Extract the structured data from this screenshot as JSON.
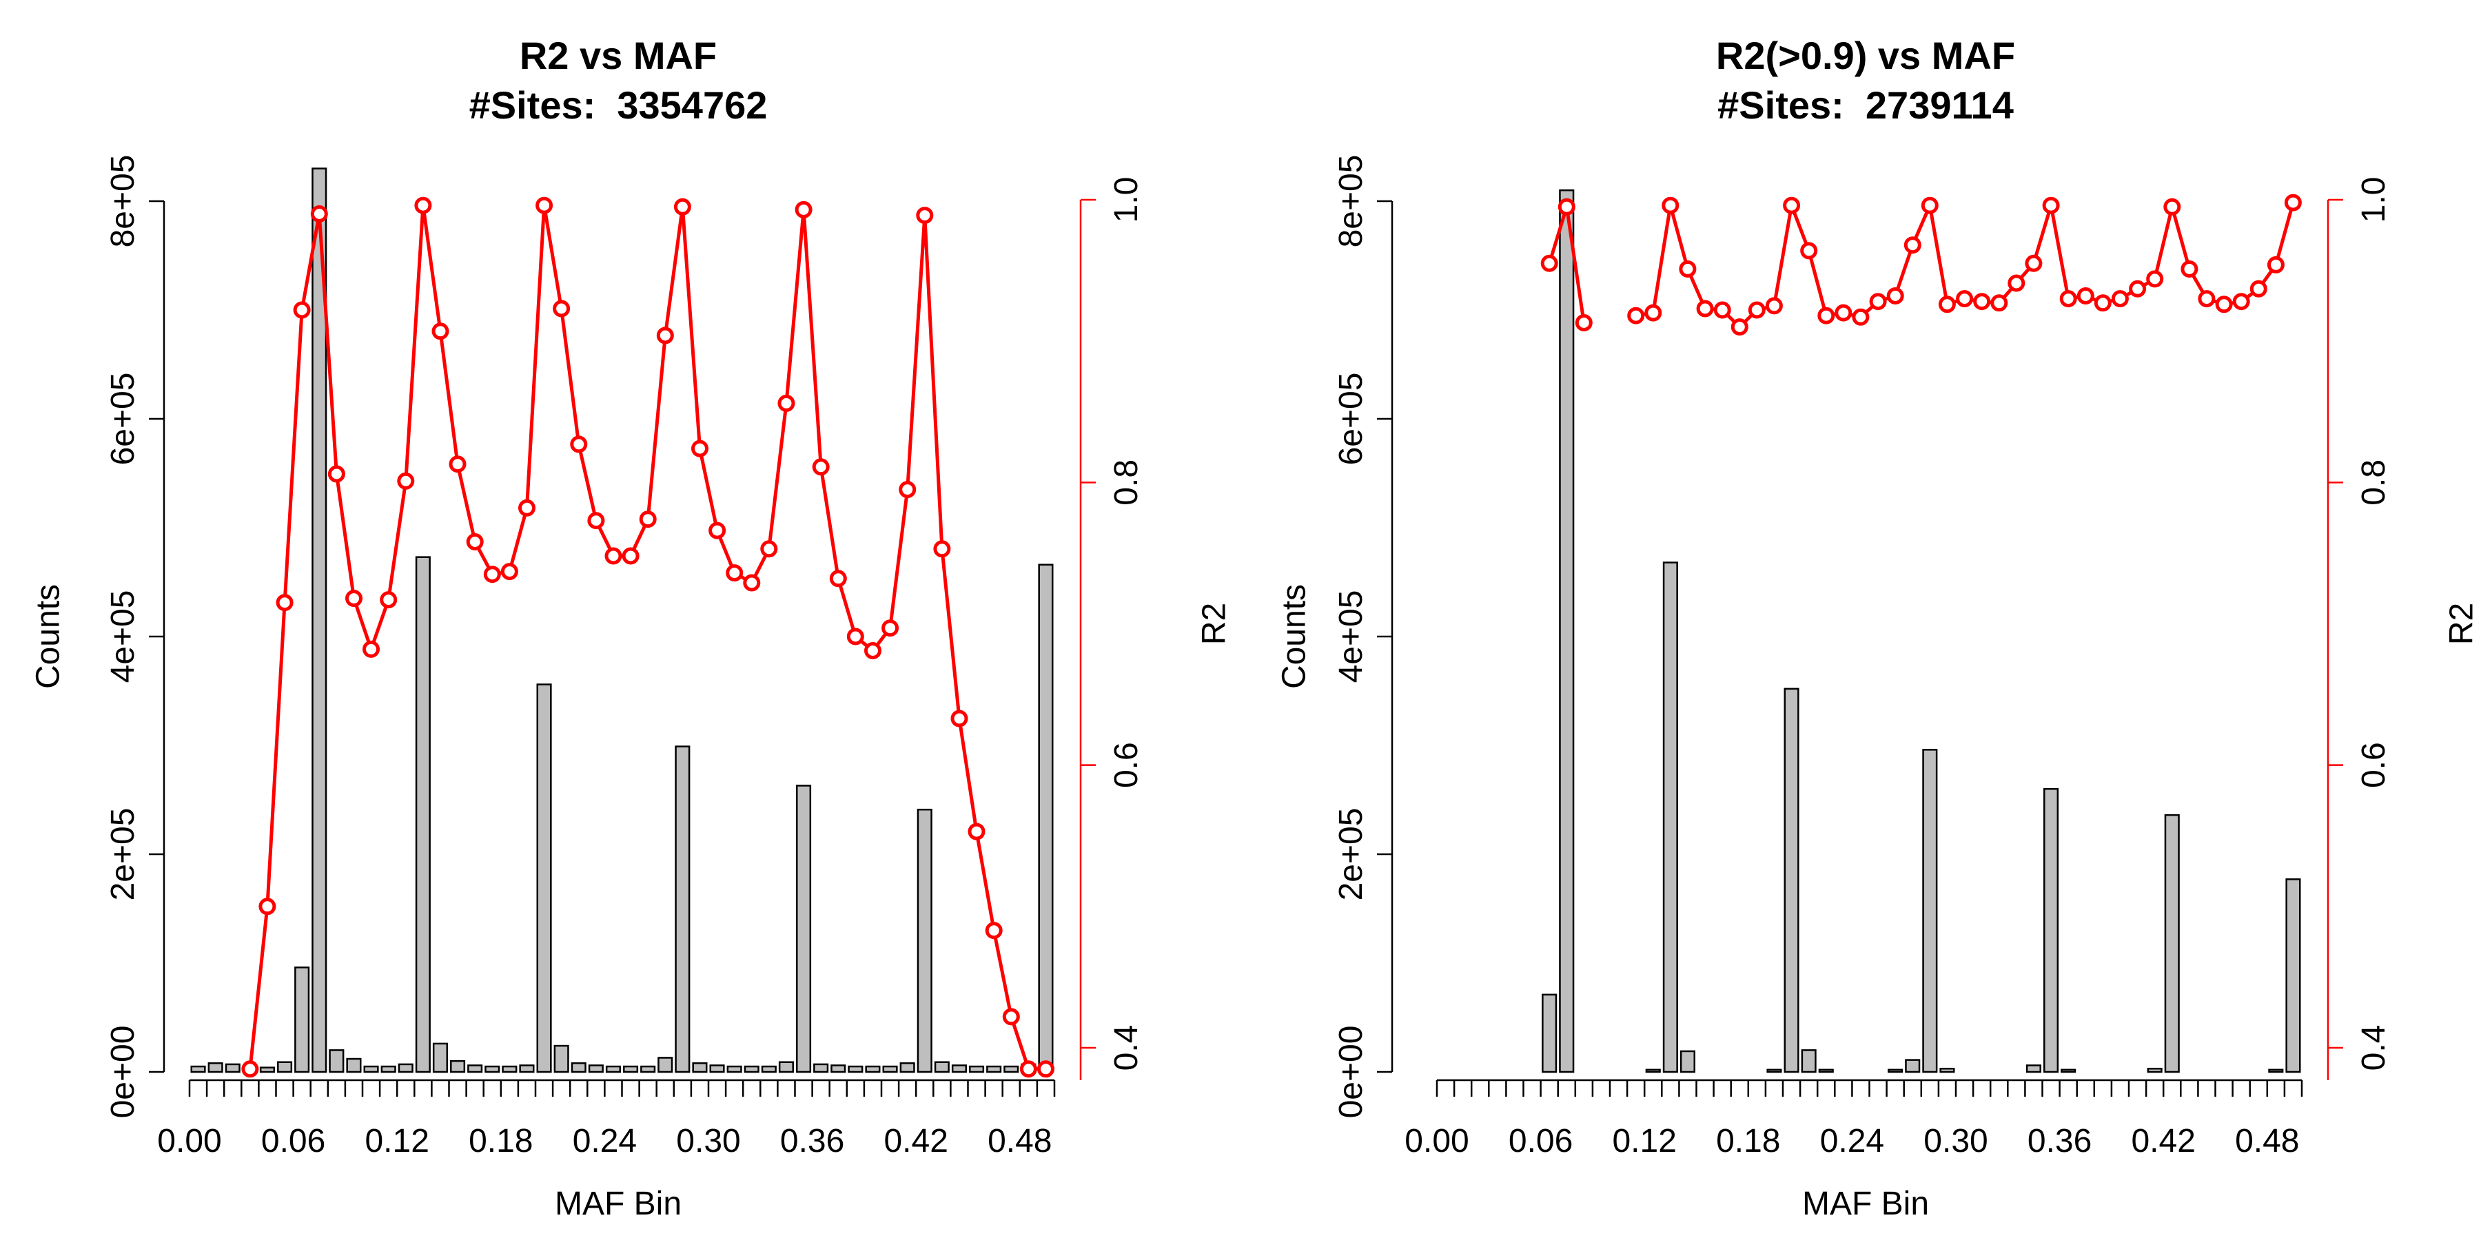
{
  "chart_data": [
    {
      "type": "bar",
      "title": "R2 vs MAF",
      "subtitle": "#Sites:  3354762",
      "xlabel": "MAF Bin",
      "ylabel": "Counts",
      "y2label": "R2",
      "bar_color": "#bebebe",
      "line_color": "#ff0000",
      "xlim": [
        0,
        0.5
      ],
      "ylim": [
        0,
        800000
      ],
      "y2lim": [
        0.4,
        1.0
      ],
      "yticks": [
        "0e+00",
        "2e+05",
        "4e+05",
        "6e+05",
        "8e+05"
      ],
      "y2ticks": [
        "0.4",
        "0.6",
        "0.8",
        "1.0"
      ],
      "xticks": [
        "0.00",
        "0.06",
        "0.12",
        "0.18",
        "0.24",
        "0.30",
        "0.36",
        "0.42",
        "0.48"
      ],
      "counts": [
        5000,
        8000,
        7000,
        4000,
        4000,
        9000,
        96000,
        830000,
        20000,
        12000,
        5000,
        5000,
        7000,
        473000,
        26000,
        10000,
        6000,
        5000,
        5000,
        6000,
        356000,
        24000,
        8000,
        6000,
        5000,
        5000,
        5000,
        13000,
        299000,
        8000,
        6000,
        5000,
        5000,
        5000,
        9000,
        263000,
        7000,
        6000,
        5000,
        5000,
        5000,
        8000,
        241000,
        9000,
        6000,
        5000,
        5000,
        5000,
        7000,
        466000
      ],
      "r2": [
        null,
        null,
        null,
        0.385,
        0.5,
        0.715,
        0.922,
        0.99,
        0.806,
        0.718,
        0.682,
        0.717,
        0.801,
        0.996,
        0.907,
        0.813,
        0.758,
        0.735,
        0.737,
        0.782,
        0.996,
        0.923,
        0.827,
        0.773,
        0.748,
        0.748,
        0.774,
        0.904,
        0.995,
        0.824,
        0.766,
        0.736,
        0.729,
        0.753,
        0.856,
        0.993,
        0.811,
        0.732,
        0.691,
        0.681,
        0.697,
        0.795,
        0.989,
        0.753,
        0.633,
        0.553,
        0.483,
        0.422,
        0.385,
        0.385
      ]
    },
    {
      "type": "bar",
      "title": "R2(>0.9) vs MAF",
      "subtitle": "#Sites:  2739114",
      "xlabel": "MAF Bin",
      "ylabel": "Counts",
      "y2label": "R2",
      "bar_color": "#bebebe",
      "line_color": "#ff0000",
      "xlim": [
        0,
        0.5
      ],
      "ylim": [
        0,
        800000
      ],
      "y2lim": [
        0.4,
        1.0
      ],
      "yticks": [
        "0e+00",
        "2e+05",
        "4e+05",
        "6e+05",
        "8e+05"
      ],
      "y2ticks": [
        "0.4",
        "0.6",
        "0.8",
        "1.0"
      ],
      "xticks": [
        "0.00",
        "0.06",
        "0.12",
        "0.18",
        "0.24",
        "0.30",
        "0.36",
        "0.42",
        "0.48"
      ],
      "counts": [
        0,
        0,
        0,
        0,
        0,
        0,
        71000,
        810000,
        0,
        0,
        0,
        0,
        2000,
        468000,
        19000,
        0,
        0,
        0,
        0,
        2000,
        352000,
        20000,
        2000,
        0,
        0,
        0,
        2000,
        11000,
        296000,
        3000,
        0,
        0,
        0,
        0,
        6000,
        260000,
        2000,
        0,
        0,
        0,
        0,
        3000,
        236000,
        0,
        0,
        0,
        0,
        0,
        2000,
        177000
      ],
      "r2": [
        null,
        null,
        null,
        null,
        null,
        null,
        0.955,
        0.995,
        0.913,
        null,
        null,
        0.918,
        0.92,
        0.996,
        0.951,
        0.923,
        0.922,
        0.91,
        0.922,
        0.925,
        0.996,
        0.964,
        0.918,
        0.92,
        0.917,
        0.928,
        0.932,
        0.968,
        0.996,
        0.926,
        0.93,
        0.928,
        0.927,
        0.941,
        0.955,
        0.996,
        0.93,
        0.932,
        0.927,
        0.93,
        0.937,
        0.944,
        0.995,
        0.951,
        0.93,
        0.926,
        0.928,
        0.937,
        0.954,
        0.998
      ]
    }
  ]
}
